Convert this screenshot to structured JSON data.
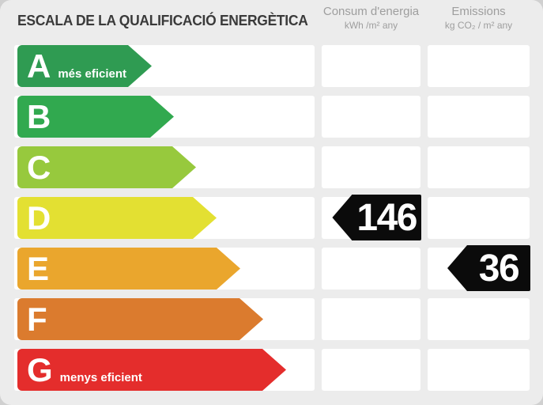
{
  "header": {
    "title": "ESCALA DE LA QUALIFICACIÓ ENERGÈTICA",
    "consum": {
      "title": "Consum d'energia",
      "unit": "kWh /m²  any"
    },
    "emissions": {
      "title": "Emissions",
      "unit": "kg CO₂ / m²  any"
    }
  },
  "rows": [
    {
      "letter": "A",
      "label": "més eficient",
      "color": "#2f9b52"
    },
    {
      "letter": "B",
      "label": "",
      "color": "#31a94f"
    },
    {
      "letter": "C",
      "label": "",
      "color": "#97c93d"
    },
    {
      "letter": "D",
      "label": "",
      "color": "#e3e032"
    },
    {
      "letter": "E",
      "label": "",
      "color": "#eaa62d"
    },
    {
      "letter": "F",
      "label": "",
      "color": "#db7b2e"
    },
    {
      "letter": "G",
      "label": "menys eficient",
      "color": "#e42d2c"
    }
  ],
  "values": {
    "consum": {
      "value": "146",
      "rating": "D",
      "color": "#0b0b0b"
    },
    "emissions": {
      "value": "36",
      "rating": "E",
      "color": "#0b0b0b"
    }
  },
  "colors": {
    "card_background": "#ececec",
    "page_background": "#d0d0d0",
    "cell_background": "#ffffff",
    "title_text": "#3a3a3a",
    "header_text": "#9e9e9e"
  },
  "chart_data": {
    "type": "bar",
    "title": "ESCALA DE LA QUALIFICACIÓ ENERGÈTICA",
    "categories": [
      "A",
      "B",
      "C",
      "D",
      "E",
      "F",
      "G"
    ],
    "category_notes": {
      "A": "més eficient",
      "G": "menys eficient"
    },
    "category_colors": [
      "#2f9b52",
      "#31a94f",
      "#97c93d",
      "#e3e032",
      "#eaa62d",
      "#db7b2e",
      "#e42d2c"
    ],
    "series": [
      {
        "name": "Consum d'energia",
        "unit": "kWh /m² any",
        "rating": "D",
        "value": 146
      },
      {
        "name": "Emissions",
        "unit": "kg CO₂ / m² any",
        "rating": "E",
        "value": 36
      }
    ],
    "legend_position": "top",
    "grid": false
  }
}
